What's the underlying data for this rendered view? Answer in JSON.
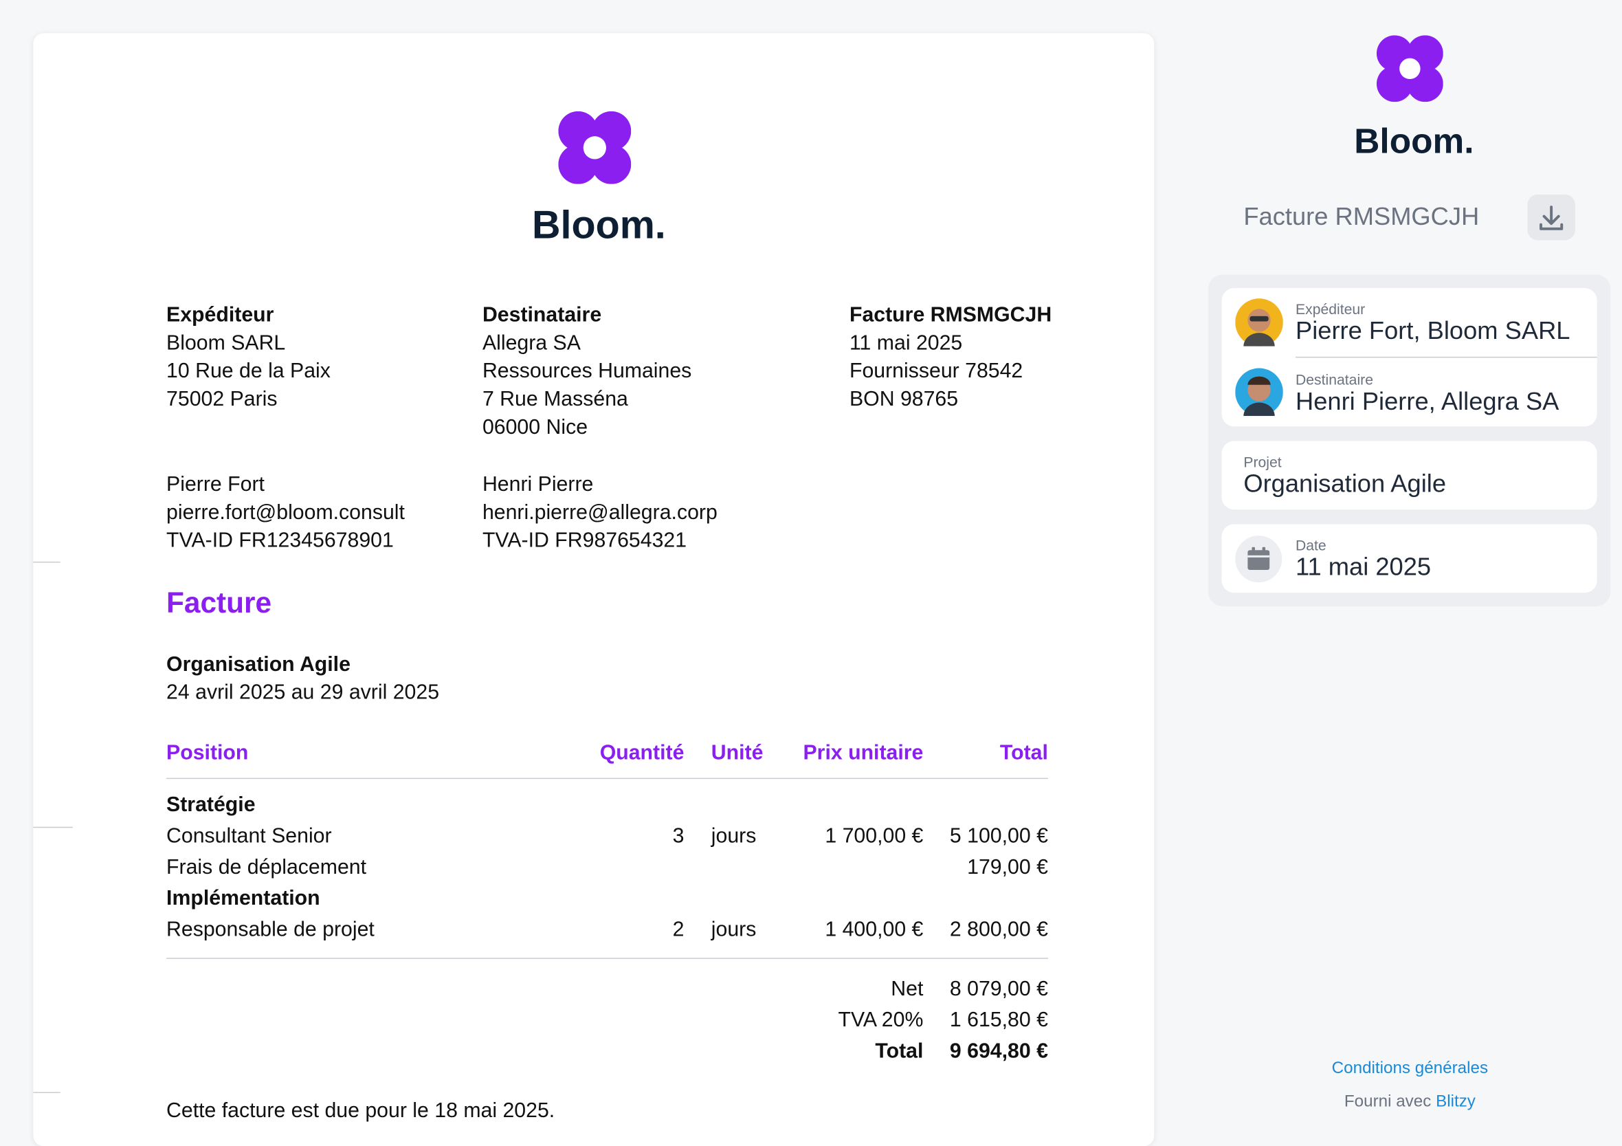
{
  "invoice": {
    "brand": "Bloom.",
    "sender": {
      "heading": "Expéditeur",
      "lines": [
        "Bloom SARL",
        "10 Rue de la Paix",
        "75002 Paris"
      ]
    },
    "recipient": {
      "heading": "Destinataire",
      "lines": [
        "Allegra SA",
        "Ressources Humaines",
        "7 Rue Masséna",
        "06000 Nice"
      ]
    },
    "meta": {
      "heading": "Facture RMSMGCJH",
      "lines": [
        "11 mai 2025",
        "Fournisseur 78542",
        "BON 98765"
      ]
    },
    "sender_contact": [
      "Pierre Fort",
      "pierre.fort@bloom.consult",
      "TVA-ID FR12345678901"
    ],
    "recipient_contact": [
      "Henri Pierre",
      "henri.pierre@allegra.corp",
      "TVA-ID FR987654321"
    ],
    "title": "Facture",
    "project": "Organisation Agile",
    "period": "24 avril 2025 au 29 avril 2025",
    "table": {
      "headers": [
        "Position",
        "Quantité",
        "Unité",
        "Prix unitaire",
        "Total"
      ],
      "rows": [
        [
          "Stratégie"
        ],
        [
          "Consultant Senior",
          "3",
          "jours",
          "1 700,00 €",
          "5 100,00 €"
        ],
        [
          "Frais de déplacement",
          "179,00 €"
        ],
        [
          "Implémentation"
        ],
        [
          "Responsable de projet",
          "2",
          "jours",
          "1 400,00 €",
          "2 800,00 €"
        ]
      ]
    },
    "totals": [
      [
        "Net",
        "8 079,00 €"
      ],
      [
        "TVA 20%",
        "1 615,80 €"
      ],
      [
        "Total",
        "9 694,80 €"
      ]
    ],
    "due_note": "Cette facture est due pour le 18 mai 2025."
  },
  "sidebar": {
    "brand": "Bloom.",
    "invoice_label": "Facture RMSMGCJH",
    "sender": {
      "label": "Expéditeur",
      "value": "Pierre Fort, Bloom SARL"
    },
    "recipient": {
      "label": "Destinataire",
      "value": "Henri Pierre, Allegra SA"
    },
    "project": {
      "label": "Projet",
      "value": "Organisation Agile"
    },
    "date": {
      "label": "Date",
      "value": "11 mai 2025"
    },
    "terms_link": "Conditions générales",
    "powered_by": "Fourni avec",
    "powered_link": "Blitzy"
  }
}
